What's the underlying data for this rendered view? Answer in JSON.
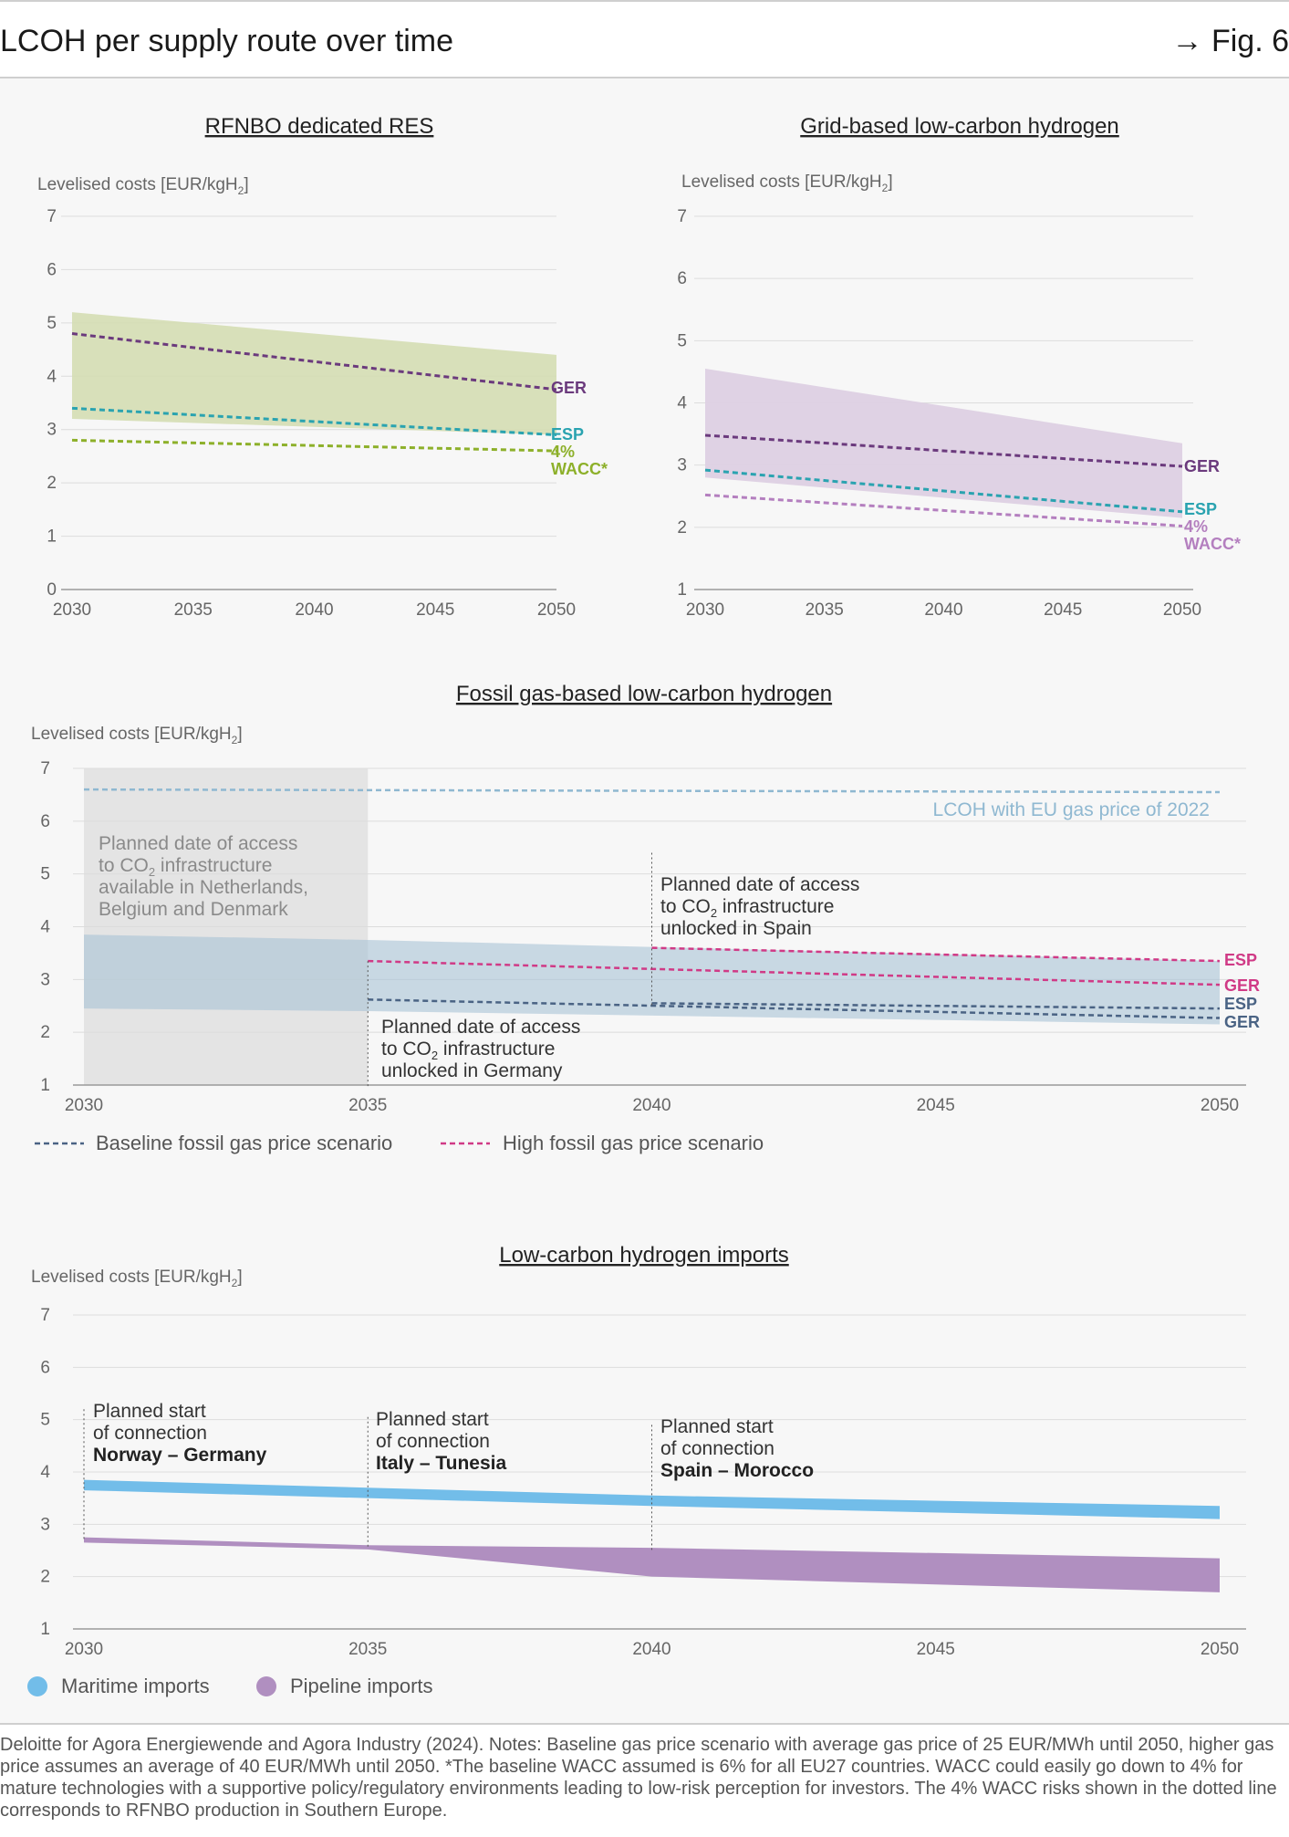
{
  "header": {
    "title": "LCOH per supply route over time",
    "fig": "→ Fig. 6"
  },
  "colors": {
    "ger_purple": "#6b3a7d",
    "esp_teal": "#2aa3b0",
    "wacc_green": "#8db02a",
    "green_band": "#d4ddb3",
    "purple_band": "#ddd0e3",
    "wacc_purple": "#b47fbf",
    "gas_band": "#c2d2dd",
    "baseline_navy": "#4a6384",
    "high_pink": "#d03a86",
    "eu_blue": "#8fb8d1",
    "grey_zone": "#e6e6e6",
    "maritime": "#72bde9",
    "pipeline": "#b08fc0"
  },
  "chart_data": [
    {
      "type": "line",
      "title": "RFNBO dedicated RES",
      "ylabel": "Levelised costs [EUR/kgH",
      "ylabel_sub": "2",
      "ylim": [
        0,
        7
      ],
      "yticks": [
        "0",
        "1",
        "2",
        "3",
        "4",
        "5",
        "6",
        "7"
      ],
      "x": [
        "2030",
        "2035",
        "2040",
        "2045",
        "2050"
      ],
      "band": {
        "x": [
          2030,
          2050
        ],
        "upper": [
          5.2,
          4.4
        ],
        "lower": [
          3.2,
          2.9
        ]
      },
      "series": [
        {
          "name": "GER",
          "x": [
            2030,
            2050
          ],
          "values": [
            4.8,
            3.75
          ]
        },
        {
          "name": "ESP",
          "x": [
            2030,
            2050
          ],
          "values": [
            3.4,
            2.9
          ]
        },
        {
          "name": "4% WACC*",
          "x": [
            2030,
            2050
          ],
          "values": [
            2.8,
            2.6
          ]
        }
      ],
      "end_labels": {
        "ger": "GER",
        "esp": "ESP",
        "wacc1": "4%",
        "wacc2": "WACC*"
      }
    },
    {
      "type": "line",
      "title": "Grid-based low-carbon hydrogen",
      "ylabel": "Levelised costs [EUR/kgH",
      "ylabel_sub": "2",
      "ylim": [
        1,
        7
      ],
      "yticks": [
        "1",
        "2",
        "3",
        "4",
        "5",
        "6",
        "7"
      ],
      "x": [
        "2030",
        "2035",
        "2040",
        "2045",
        "2050"
      ],
      "band": {
        "x": [
          2030,
          2050
        ],
        "upper": [
          4.55,
          3.35
        ],
        "lower": [
          2.8,
          2.15
        ]
      },
      "series": [
        {
          "name": "GER",
          "x": [
            2030,
            2050
          ],
          "values": [
            3.48,
            2.98
          ]
        },
        {
          "name": "ESP",
          "x": [
            2030,
            2050
          ],
          "values": [
            2.92,
            2.25
          ]
        },
        {
          "name": "4% WACC*",
          "x": [
            2030,
            2050
          ],
          "values": [
            2.52,
            2.02
          ]
        }
      ],
      "end_labels": {
        "ger": "GER",
        "esp": "ESP",
        "wacc1": "4%",
        "wacc2": "WACC*"
      }
    },
    {
      "type": "line",
      "title": "Fossil gas-based low-carbon hydrogen",
      "ylabel": "Levelised costs [EUR/kgH",
      "ylabel_sub": "2",
      "ylim": [
        1,
        7
      ],
      "yticks": [
        "1",
        "2",
        "3",
        "4",
        "5",
        "6",
        "7"
      ],
      "x": [
        "2030",
        "2035",
        "2040",
        "2045",
        "2050"
      ],
      "band": {
        "x": [
          2030,
          2035,
          2050
        ],
        "upper": [
          3.85,
          3.75,
          3.35
        ],
        "lower": [
          2.45,
          2.4,
          2.15
        ]
      },
      "series": [
        {
          "name": "LCOH with EU gas price of 2022",
          "x": [
            2030,
            2050
          ],
          "values": [
            6.6,
            6.55
          ]
        },
        {
          "name": "High fossil gas price scenario – ESP",
          "x": [
            2040,
            2050
          ],
          "values": [
            3.6,
            3.35
          ]
        },
        {
          "name": "High fossil gas price scenario – GER",
          "x": [
            2035,
            2050
          ],
          "values": [
            3.35,
            2.9
          ]
        },
        {
          "name": "Baseline fossil gas price scenario – ESP",
          "x": [
            2040,
            2050
          ],
          "values": [
            2.55,
            2.45
          ]
        },
        {
          "name": "Baseline fossil gas price scenario – GER",
          "x": [
            2035,
            2050
          ],
          "values": [
            2.62,
            2.27
          ]
        }
      ],
      "end_labels": {
        "esp_high": "ESP",
        "ger_high": "GER",
        "esp_base": "ESP",
        "ger_base": "GER"
      },
      "annotations": {
        "eu_gas": "LCOH with EU gas price of 2022",
        "nl_l1": "Planned date of access",
        "nl_l2": "to CO",
        "nl_l2_sub": "2",
        "nl_l2_tail": " infrastructure",
        "nl_l3": "available in Netherlands,",
        "nl_l4": "Belgium and Denmark",
        "es_l1": "Planned date of access",
        "es_l2": "to CO",
        "es_l2_sub": "2",
        "es_l2_tail": " infrastructure",
        "es_l3": "unlocked in Spain",
        "de_l1": "Planned date of access",
        "de_l2": "to CO",
        "de_l2_sub": "2",
        "de_l2_tail": " infrastructure",
        "de_l3": "unlocked in Germany"
      },
      "legend": [
        "Baseline fossil gas price scenario",
        "High fossil gas price scenario"
      ]
    },
    {
      "type": "area",
      "title": "Low-carbon hydrogen imports",
      "ylabel": "Levelised costs [EUR/kgH",
      "ylabel_sub": "2",
      "ylim": [
        1,
        7
      ],
      "yticks": [
        "1",
        "2",
        "3",
        "4",
        "5",
        "6",
        "7"
      ],
      "x": [
        "2030",
        "2035",
        "2040",
        "2045",
        "2050"
      ],
      "series": [
        {
          "name": "Maritime imports",
          "x": [
            2030,
            2035,
            2040,
            2050
          ],
          "upper": [
            3.85,
            3.7,
            3.55,
            3.35
          ],
          "lower": [
            3.65,
            3.5,
            3.35,
            3.1
          ]
        },
        {
          "name": "Pipeline imports",
          "x": [
            2030,
            2035,
            2040,
            2050
          ],
          "upper": [
            2.75,
            2.6,
            2.55,
            2.35
          ],
          "lower": [
            2.65,
            2.52,
            2.0,
            1.7
          ]
        }
      ],
      "annotations": [
        {
          "l1": "Planned start",
          "l2": "of connection",
          "l3": "Norway – Germany"
        },
        {
          "l1": "Planned start",
          "l2": "of connection",
          "l3": "Italy – Tunesia"
        },
        {
          "l1": "Planned start",
          "l2": "of connection",
          "l3": "Spain – Morocco"
        }
      ],
      "legend": [
        "Maritime imports",
        "Pipeline imports"
      ]
    }
  ],
  "footer": {
    "note": "Deloitte for Agora Energiewende and Agora Industry (2024). Notes: Baseline gas price scenario with average gas price of 25 EUR/MWh until 2050, higher gas price assumes an average of 40 EUR/MWh until 2050. *The baseline WACC assumed is 6% for all EU27 countries. WACC could easily go down to 4% for mature technologies with a supportive policy/regulatory environments leading to low-risk perception for investors. The 4% WACC risks shown in the dotted line corresponds to RFNBO production in Southern Europe."
  }
}
